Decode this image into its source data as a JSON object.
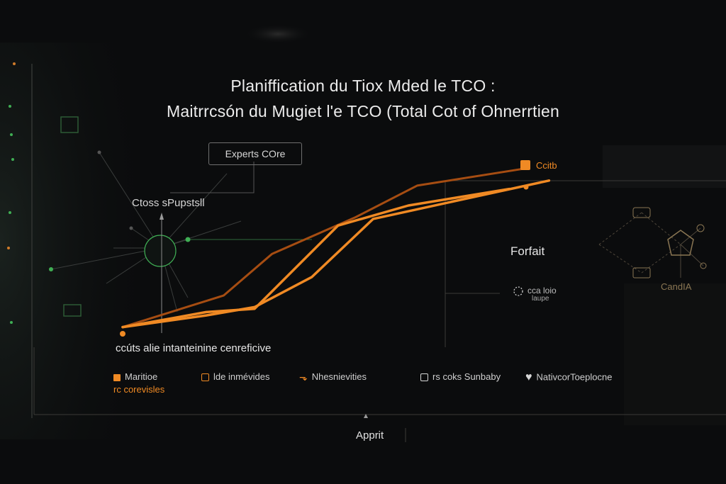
{
  "title_line1": "Planiffication du Tiox Mded le TCO :",
  "title_line2": "Maitrrcsón du Mugiet l'e  TCO (Total Cot of Ohnerrtien",
  "annotations": {
    "experts_box": "Experts COre",
    "cross_label": "Ctoss sPupstsll",
    "forfait": "Forfait",
    "cta_line1": "cca loio",
    "cta_line2": "laupe",
    "candia": "CandIA",
    "end_label": "Ccitb",
    "baseline_caption": "ccúts alie intanteinine cenreficive",
    "x_axis_label": "Apprit"
  },
  "legend": [
    {
      "icon": "filled-square-icon",
      "label": "Maritioe",
      "sub": "rc corevisles"
    },
    {
      "icon": "outlined-square-icon",
      "label": "lde inmévides"
    },
    {
      "icon": "arrow-down-icon",
      "label": "Nhesnievities"
    },
    {
      "icon": "outlined-square-icon",
      "label": "rs coks Sunbaby"
    },
    {
      "icon": "heart-icon",
      "label": "NativcorToeplocne"
    }
  ],
  "colors": {
    "accent": "#f08a24",
    "accent_dark": "#a64d12",
    "background": "#0b0c0d",
    "node_green": "#3fae54"
  },
  "chart_data": {
    "type": "line",
    "title": "Planiffication du Tiox Mded le TCO : Maitrrcsón du Mugiet l'e  TCO (Total Cot of Ohnerrtien",
    "xlabel": "Apprit",
    "ylabel": "",
    "xlim": [
      0,
      10
    ],
    "ylim": [
      0,
      10
    ],
    "grid": false,
    "legend_position": "bottom",
    "series": [
      {
        "x": [
          0,
          2.3,
          3.4,
          5.3,
          6.7,
          9.1
        ],
        "y": [
          0.4,
          2.3,
          4.8,
          7.0,
          8.9,
          9.9
        ]
      },
      {
        "x": [
          0,
          1.9,
          3.0,
          4.3,
          5.7,
          9.7
        ],
        "y": [
          0.4,
          1.1,
          1.6,
          3.4,
          6.9,
          9.2
        ]
      },
      {
        "x": [
          0,
          1.9,
          3.0,
          4.9,
          6.5,
          8.8
        ],
        "y": [
          0.4,
          1.3,
          1.5,
          6.5,
          7.7,
          8.7
        ]
      }
    ]
  }
}
